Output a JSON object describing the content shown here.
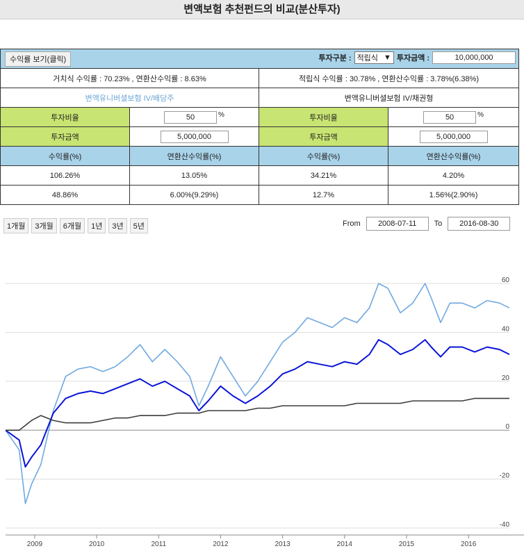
{
  "title": "변액보험 추천펀드의 비교(분산투자)",
  "toolbar": {
    "view_button": "수익률 보기(클릭)",
    "invest_type_label": "투자구분 :",
    "invest_type_value": "적립식",
    "invest_amount_label": "투자금액 :",
    "invest_amount_value": "10,000,000"
  },
  "summary": {
    "lump": "거치식 수익률 : 70.23% , 연환산수익률 : 8.63%",
    "periodic": "적립식 수익률 : 30.78% , 연환산수익률 : 3.78%(6.38%)"
  },
  "funds": [
    {
      "name": "변액유니버셜보험 IV/배당주",
      "ratio_label": "투자비율",
      "ratio_value": "50",
      "ratio_unit": "%",
      "amount_label": "투자금액",
      "amount_value": "5,000,000",
      "col_return": "수익률(%)",
      "col_annual": "연환산수익률(%)",
      "row1": [
        "106.26%",
        "13.05%"
      ],
      "row2": [
        "48.86%",
        "6.00%(9.29%)"
      ]
    },
    {
      "name": "변액유니버셜보험 IV/채권형",
      "ratio_label": "투자비율",
      "ratio_value": "50",
      "ratio_unit": "%",
      "amount_label": "투자금액",
      "amount_value": "5,000,000",
      "col_return": "수익률(%)",
      "col_annual": "연환산수익률(%)",
      "row1": [
        "34.21%",
        "4.20%"
      ],
      "row2": [
        "12.7%",
        "1.56%(2.90%)"
      ]
    }
  ],
  "range": {
    "buttons": [
      "1개월",
      "3개월",
      "6개월",
      "1년",
      "3년",
      "5년"
    ],
    "from_label": "From",
    "from_value": "2008-07-11",
    "to_label": "To",
    "to_value": "2016-08-30"
  },
  "chart_data": {
    "type": "line",
    "x_ticks": [
      "2009",
      "2010",
      "2011",
      "2012",
      "2013",
      "2014",
      "2015",
      "2016"
    ],
    "y_ticks": [
      60,
      40,
      20,
      0,
      -20,
      -40
    ],
    "ylim": [
      -40,
      60
    ],
    "grid": true,
    "x": [
      2008.53,
      2008.75,
      2008.85,
      2008.95,
      2009.1,
      2009.3,
      2009.5,
      2009.7,
      2009.9,
      2010.1,
      2010.3,
      2010.5,
      2010.7,
      2010.9,
      2011.1,
      2011.3,
      2011.5,
      2011.65,
      2011.8,
      2012.0,
      2012.2,
      2012.4,
      2012.6,
      2012.8,
      2013.0,
      2013.2,
      2013.4,
      2013.6,
      2013.8,
      2014.0,
      2014.2,
      2014.4,
      2014.55,
      2014.7,
      2014.9,
      2015.1,
      2015.3,
      2015.4,
      2015.55,
      2015.7,
      2015.9,
      2016.1,
      2016.3,
      2016.5,
      2016.66
    ],
    "series": [
      {
        "color": "#6fa9e0",
        "values": [
          0,
          -8,
          -30,
          -22,
          -14,
          8,
          22,
          25,
          26,
          24,
          26,
          30,
          35,
          28,
          33,
          28,
          22,
          10,
          18,
          30,
          22,
          14,
          20,
          28,
          36,
          40,
          46,
          44,
          42,
          46,
          44,
          50,
          60,
          58,
          48,
          52,
          60,
          54,
          44,
          52,
          52,
          50,
          53,
          52,
          50
        ]
      },
      {
        "color": "#0a14d8",
        "values": [
          0,
          -4,
          -15,
          -11,
          -6,
          7,
          13,
          15,
          16,
          15,
          17,
          19,
          21,
          18,
          20,
          17,
          14,
          8,
          12,
          18,
          14,
          11,
          14,
          18,
          23,
          25,
          28,
          27,
          26,
          28,
          27,
          31,
          37,
          35,
          31,
          33,
          37,
          34,
          30,
          34,
          34,
          32,
          34,
          33,
          31
        ]
      },
      {
        "color": "#3a3a3a",
        "values": [
          0,
          0,
          2,
          4,
          6,
          4,
          3,
          3,
          3,
          4,
          5,
          5,
          6,
          6,
          6,
          7,
          7,
          7,
          8,
          8,
          8,
          8,
          9,
          9,
          10,
          10,
          10,
          10,
          10,
          10,
          11,
          11,
          11,
          11,
          11,
          12,
          12,
          12,
          12,
          12,
          12,
          13,
          13,
          13,
          13
        ]
      }
    ]
  }
}
